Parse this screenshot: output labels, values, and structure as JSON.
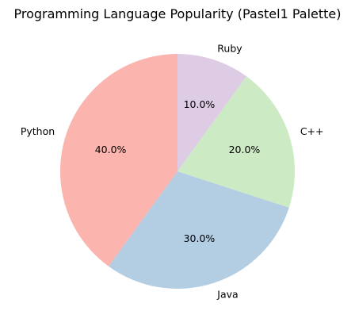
{
  "chart_data": {
    "type": "pie",
    "title": "Programming Language Popularity (Pastel1 Palette)",
    "categories": [
      "Python",
      "Java",
      "C++",
      "Ruby"
    ],
    "values": [
      40,
      30,
      20,
      10
    ],
    "percent_labels": [
      "40.0%",
      "30.0%",
      "20.0%",
      "10.0%"
    ],
    "colors": [
      "#fbb4ae",
      "#b3cde3",
      "#ccebc5",
      "#decbe4"
    ],
    "start_angle_deg": 90,
    "direction": "counterclockwise",
    "legend": "none"
  }
}
